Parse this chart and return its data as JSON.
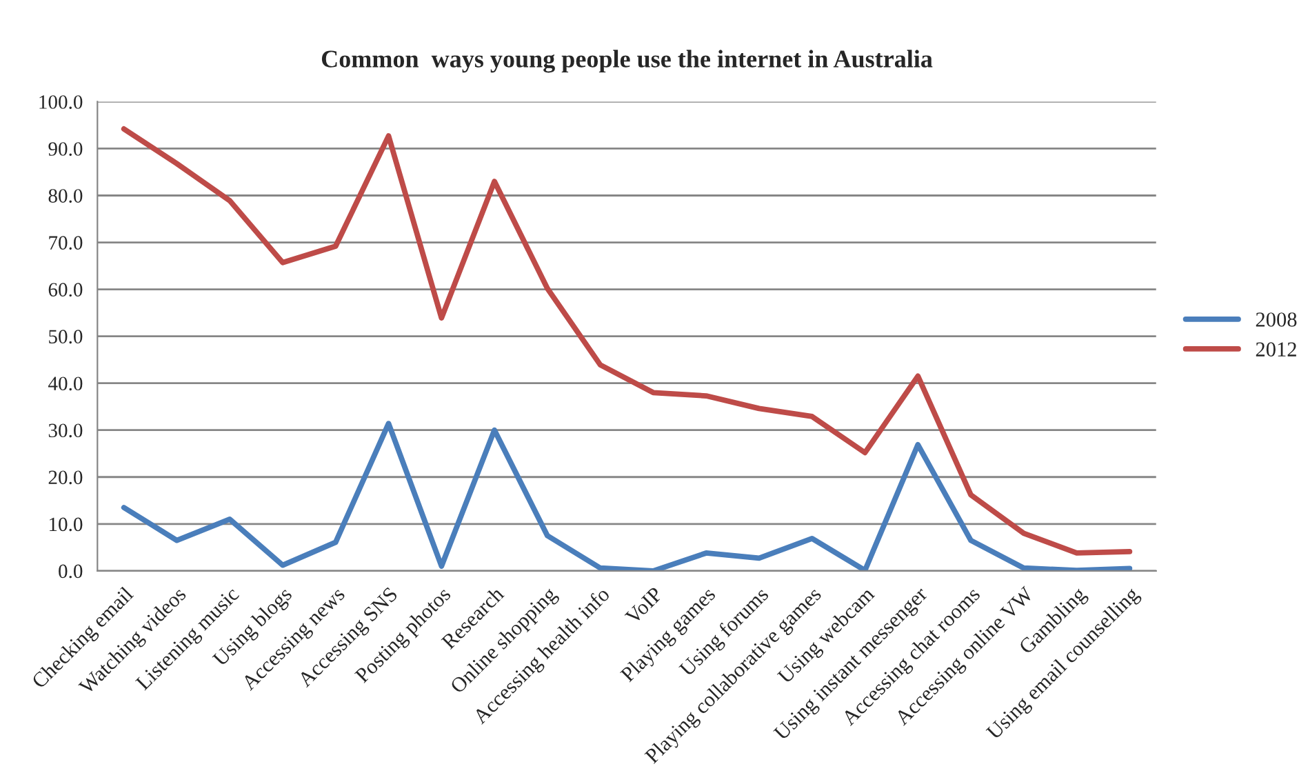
{
  "chart_data": {
    "type": "line",
    "title": "Common  ways young people use the internet in Australia",
    "categories": [
      "Checking email",
      "Watching videos",
      "Listening music",
      "Using blogs",
      "Accessing news",
      "Accessing SNS",
      "Posting photos",
      "Research",
      "Online shopping",
      "Accessing health info",
      "VoIP",
      "Playing games",
      "Using forums",
      "Playing collaborative games",
      "Using webcam",
      "Using instant messenger",
      "Accessing chat rooms",
      "Accessing online VW",
      "Gambling",
      "Using email counselling"
    ],
    "series": [
      {
        "name": "2008",
        "color": "#4a7ebb",
        "values": [
          13.5,
          6.5,
          11.0,
          1.2,
          6.1,
          31.4,
          1.0,
          30.0,
          7.5,
          0.6,
          0.0,
          3.8,
          2.7,
          6.9,
          0.1,
          26.9,
          6.5,
          0.6,
          0.1,
          0.5
        ]
      },
      {
        "name": "2012",
        "color": "#be4b48",
        "values": [
          94.2,
          86.8,
          78.9,
          65.7,
          69.2,
          92.7,
          53.9,
          83.0,
          60.2,
          43.9,
          38.0,
          37.3,
          34.6,
          32.9,
          25.2,
          41.5,
          16.2,
          8.0,
          3.8,
          4.1
        ]
      }
    ],
    "ylim": [
      0,
      100
    ],
    "yticks": [
      {
        "value": 0,
        "label": "0.0"
      },
      {
        "value": 10,
        "label": "10.0"
      },
      {
        "value": 20,
        "label": "20.0"
      },
      {
        "value": 30,
        "label": "30.0"
      },
      {
        "value": 40,
        "label": "40.0"
      },
      {
        "value": 50,
        "label": "50.0"
      },
      {
        "value": 60,
        "label": "60.0"
      },
      {
        "value": 70,
        "label": "70.0"
      },
      {
        "value": 80,
        "label": "80.0"
      },
      {
        "value": 90,
        "label": "90.0"
      },
      {
        "value": 100,
        "label": "100.0"
      }
    ],
    "grid": "y",
    "legend": "right",
    "marker": "none",
    "line_style": "solid"
  }
}
